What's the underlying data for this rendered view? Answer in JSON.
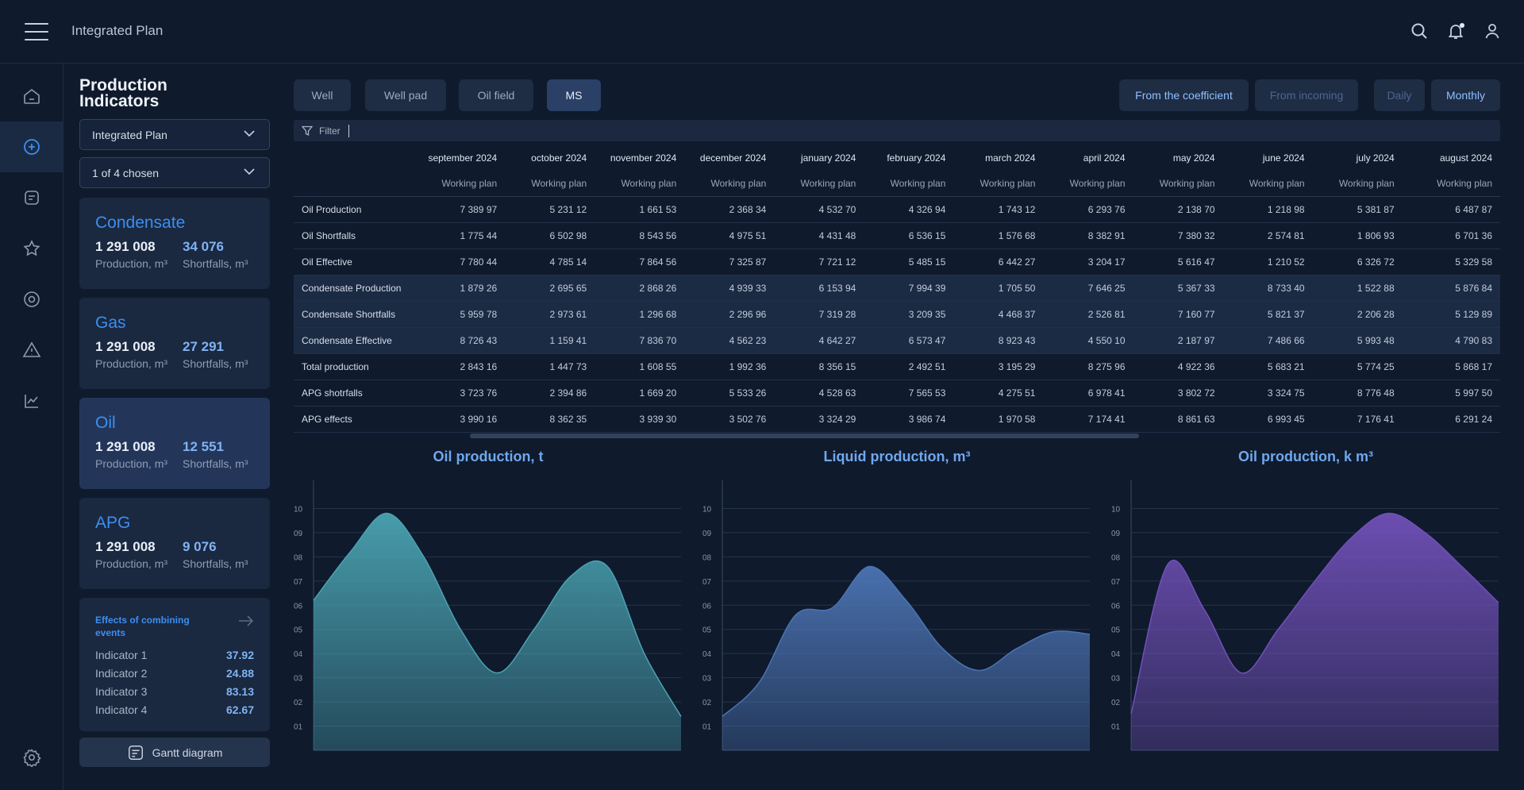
{
  "app": {
    "title": "Integrated Plan"
  },
  "panel": {
    "title": "Production Indicators",
    "plan_select": "Integrated Plan",
    "chosen_select": "1 of 4 chosen",
    "cards": [
      {
        "name": "Condensate",
        "production": "1 291 008",
        "production_label": "Production, m³",
        "shortfalls": "34 076",
        "shortfalls_label": "Shortfalls, m³"
      },
      {
        "name": "Gas",
        "production": "1 291 008",
        "production_label": "Production, m³",
        "shortfalls": "27 291",
        "shortfalls_label": "Shortfalls, m³"
      },
      {
        "name": "Oil",
        "production": "1 291 008",
        "production_label": "Production, m³",
        "shortfalls": "12 551",
        "shortfalls_label": "Shortfalls, m³"
      },
      {
        "name": "APG",
        "production": "1 291 008",
        "production_label": "Production, m³",
        "shortfalls": "9 076",
        "shortfalls_label": "Shortfalls, m³"
      }
    ],
    "effects": {
      "title": "Effects of combining events",
      "items": [
        {
          "label": "Indicator 1",
          "value": "37.92"
        },
        {
          "label": "Indicator 2",
          "value": "24.88"
        },
        {
          "label": "Indicator 3",
          "value": "83.13"
        },
        {
          "label": "Indicator 4",
          "value": "62.67"
        }
      ]
    },
    "gantt_label": "Gantt diagram"
  },
  "tabs": {
    "well": "Well",
    "well_pad": "Well pad",
    "oil_field": "Oil field",
    "ms": "MS"
  },
  "toggles": {
    "from_coefficient": "From the coefficient",
    "from_incoming": "From incoming",
    "daily": "Daily",
    "monthly": "Monthly"
  },
  "filter": {
    "label": "Filter"
  },
  "table": {
    "months": [
      "september 2024",
      "october 2024",
      "november 2024",
      "december 2024",
      "january 2024",
      "february 2024",
      "march 2024",
      "april 2024",
      "may 2024",
      "june 2024",
      "july 2024",
      "august 2024"
    ],
    "subheader": "Working plan",
    "rows": [
      {
        "label": "Oil Production",
        "values": [
          "7 389 97",
          "5 231 12",
          "1 661 53",
          "2 368 34",
          "4 532 70",
          "4 326 94",
          "1 743 12",
          "6 293 76",
          "2 138 70",
          "1 218 98",
          "5 381 87",
          "6 487 87"
        ]
      },
      {
        "label": "Oil Shortfalls",
        "values": [
          "1 775 44",
          "6 502 98",
          "8 543 56",
          "4 975 51",
          "4 431 48",
          "6 536 15",
          "1 576 68",
          "8 382 91",
          "7 380 32",
          "2 574 81",
          "1 806 93",
          "6 701 36"
        ]
      },
      {
        "label": "Oil Effective",
        "values": [
          "7 780 44",
          "4 785 14",
          "7 864 56",
          "7 325 87",
          "7 721 12",
          "5 485 15",
          "6 442 27",
          "3 204 17",
          "5 616 47",
          "1 210 52",
          "6 326 72",
          "5 329 58"
        ]
      },
      {
        "label": "Condensate Production",
        "values": [
          "1 879 26",
          "2 695 65",
          "2 868 26",
          "4 939 33",
          "6 153 94",
          "7 994 39",
          "1 705 50",
          "7 646 25",
          "5 367 33",
          "8 733 40",
          "1 522 88",
          "5 876 84"
        ]
      },
      {
        "label": "Condensate Shortfalls",
        "values": [
          "5 959 78",
          "2 973 61",
          "1 296 68",
          "2 296 96",
          "7 319 28",
          "3 209 35",
          "4 468 37",
          "2 526 81",
          "7 160 77",
          "5 821 37",
          "2 206 28",
          "5 129 89"
        ]
      },
      {
        "label": "Condensate Effective",
        "values": [
          "8 726 43",
          "1 159 41",
          "7 836 70",
          "4 562 23",
          "4 642 27",
          "6 573 47",
          "8 923 43",
          "4 550 10",
          "2 187 97",
          "7 486 66",
          "5 993 48",
          "4 790 83"
        ]
      },
      {
        "label": "Total production",
        "values": [
          "2 843 16",
          "1 447 73",
          "1 608 55",
          "1 992 36",
          "8 356 15",
          "2 492 51",
          "3 195 29",
          "8 275 96",
          "4 922 36",
          "5 683 21",
          "5 774 25",
          "5 868 17"
        ]
      },
      {
        "label": "APG shotrfalls",
        "values": [
          "3 723 76",
          "2 394 86",
          "1 669 20",
          "5 533 26",
          "4 528 63",
          "7 565 53",
          "4 275 51",
          "6 978 41",
          "3 802 72",
          "3 324 75",
          "8 776 48",
          "5 997 50"
        ]
      },
      {
        "label": "APG effects",
        "values": [
          "3 990 16",
          "8 362 35",
          "3 939 30",
          "3 502 76",
          "3 324 29",
          "3 986 74",
          "1 970 58",
          "7 174 41",
          "8 861 63",
          "6 993 45",
          "7 176 41",
          "6 291 24"
        ]
      }
    ]
  },
  "chart_data": [
    {
      "type": "area",
      "title": "Oil production, t",
      "yticks": [
        "01",
        "02",
        "03",
        "04",
        "05",
        "06",
        "07",
        "08",
        "09",
        "10"
      ],
      "ylim": [
        0,
        11
      ],
      "x": [
        0,
        1,
        2,
        3,
        4,
        5,
        6,
        7,
        8,
        9,
        10
      ],
      "values": [
        6.2,
        8.2,
        9.8,
        8.0,
        5.0,
        3.2,
        5.0,
        7.2,
        7.6,
        4.0,
        1.4
      ],
      "color": "#4aa3b2"
    },
    {
      "type": "area",
      "title": "Liquid production, m³",
      "yticks": [
        "01",
        "02",
        "03",
        "04",
        "05",
        "06",
        "07",
        "08",
        "09",
        "10"
      ],
      "ylim": [
        0,
        11
      ],
      "x": [
        0,
        1,
        2,
        3,
        4,
        5,
        6,
        7,
        8,
        9,
        10
      ],
      "values": [
        1.4,
        2.8,
        5.6,
        5.9,
        7.6,
        6.2,
        4.2,
        3.3,
        4.2,
        4.9,
        4.8
      ],
      "color": "#4c74b4"
    },
    {
      "type": "area",
      "title": "Oil production, k m³",
      "yticks": [
        "01",
        "02",
        "03",
        "04",
        "05",
        "06",
        "07",
        "08",
        "09",
        "10"
      ],
      "ylim": [
        0,
        11
      ],
      "x": [
        0,
        1,
        2,
        3,
        4,
        5,
        6,
        7,
        8,
        9,
        10
      ],
      "values": [
        1.5,
        7.7,
        5.8,
        3.2,
        5.0,
        7.0,
        8.8,
        9.8,
        9.0,
        7.6,
        6.1
      ],
      "color": "#7150b8"
    }
  ]
}
